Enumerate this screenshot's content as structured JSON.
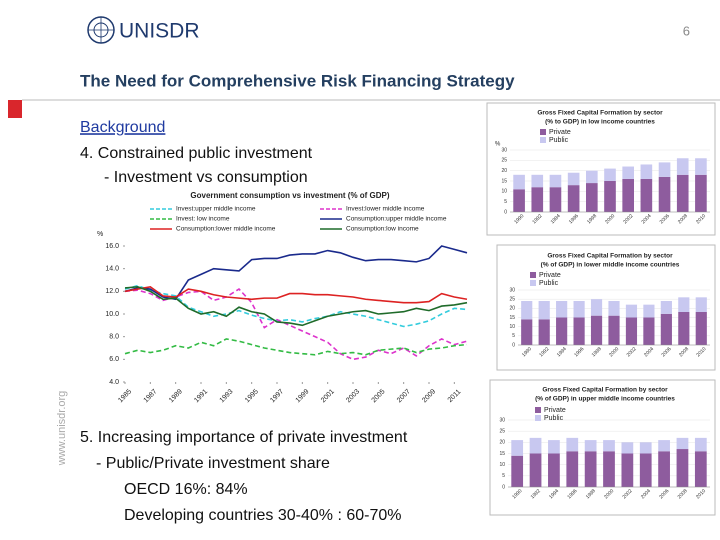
{
  "page_number": "6",
  "logo_text": "UNISDR",
  "title": "The Need for Comprehensive Risk Financing Strategy",
  "side_text": "www.unisdr.org",
  "bullets_top": [
    "Background",
    "4.  Constrained public investment",
    "- Investment vs consumption"
  ],
  "bullets_bottom": [
    "5. Increasing importance of private investment",
    "- Public/Private investment share",
    "OECD  16%: 84%",
    "Developing countries 30-40% : 60-70%"
  ],
  "chart_data": [
    {
      "type": "line",
      "title": "Government consumption vs investment (% of GDP)",
      "ylabel": "%",
      "x": [
        1985,
        1986,
        1987,
        1988,
        1989,
        1990,
        1991,
        1992,
        1993,
        1994,
        1995,
        1996,
        1997,
        1998,
        1999,
        2000,
        2001,
        2002,
        2003,
        2004,
        2005,
        2006,
        2007,
        2008,
        2009,
        2010,
        2011,
        2012
      ],
      "xlim": [
        1985,
        2012
      ],
      "xticks": [
        1985,
        1987,
        1989,
        1991,
        1993,
        1995,
        1997,
        1999,
        2001,
        2003,
        2005,
        2007,
        2009,
        2011
      ],
      "ylim": [
        4,
        16
      ],
      "yticks": [
        {
          "value": 4,
          "label": "4.0"
        },
        {
          "value": 6,
          "label": "6.0"
        },
        {
          "value": 8,
          "label": "8.0"
        },
        {
          "value": 10,
          "label": "10.0"
        },
        {
          "value": 12,
          "label": "12.0"
        },
        {
          "value": 14,
          "label": "14.0"
        },
        {
          "value": 16,
          "label": "16.0"
        }
      ],
      "series": [
        {
          "name": "Invest:upper middle income",
          "color": "#33ccdd",
          "dashed": true,
          "values": [
            12.2,
            12.5,
            12.1,
            11.8,
            11.6,
            10.6,
            10.2,
            9.8,
            10.0,
            10.3,
            9.9,
            9.6,
            9.4,
            9.5,
            9.3,
            9.6,
            9.8,
            10.2,
            10.0,
            9.8,
            9.5,
            9.2,
            8.9,
            9.1,
            9.4,
            10.0,
            10.5,
            10.4
          ]
        },
        {
          "name": "Invest:lower middle income",
          "color": "#dd33cc",
          "dashed": true,
          "values": [
            12.0,
            12.1,
            11.8,
            11.2,
            11.5,
            11.9,
            12.0,
            11.2,
            11.5,
            12.2,
            11.0,
            8.8,
            9.5,
            9.0,
            8.5,
            8.0,
            7.5,
            6.5,
            6.0,
            6.2,
            6.8,
            6.5,
            7.0,
            6.3,
            7.2,
            7.8,
            7.3,
            7.6
          ]
        },
        {
          "name": "Invest: low income",
          "color": "#33bb44",
          "dashed": true,
          "values": [
            6.5,
            6.8,
            6.6,
            6.8,
            7.2,
            7.0,
            7.5,
            7.2,
            7.8,
            7.6,
            7.3,
            7.0,
            6.8,
            6.6,
            6.5,
            6.4,
            6.7,
            6.5,
            6.6,
            6.4,
            6.8,
            6.9,
            7.0,
            6.6,
            6.9,
            7.0,
            7.2,
            7.3
          ]
        },
        {
          "name": "Consumption:upper middle income",
          "color": "#1a2a8c",
          "dashed": false,
          "values": [
            12.0,
            12.3,
            12.2,
            11.5,
            11.3,
            13.0,
            13.5,
            14.0,
            13.9,
            13.8,
            14.8,
            14.9,
            14.9,
            15.2,
            15.3,
            15.3,
            15.6,
            15.4,
            15.0,
            14.7,
            14.8,
            14.8,
            14.7,
            14.6,
            14.9,
            16.0,
            15.7,
            15.4
          ]
        },
        {
          "name": "Consumption:lower middle income",
          "color": "#dd2222",
          "dashed": false,
          "values": [
            12.0,
            12.2,
            12.4,
            11.6,
            11.5,
            12.2,
            12.0,
            11.7,
            11.5,
            11.4,
            11.3,
            11.4,
            11.4,
            11.8,
            11.8,
            11.7,
            11.7,
            11.6,
            11.5,
            11.3,
            11.2,
            11.1,
            11.0,
            11.0,
            11.1,
            11.8,
            11.5,
            11.3
          ]
        },
        {
          "name": "Consumption:low income",
          "color": "#1f6b2a",
          "dashed": false,
          "values": [
            12.3,
            12.4,
            12.0,
            11.3,
            11.4,
            10.5,
            10.0,
            10.2,
            9.8,
            10.6,
            10.2,
            10.0,
            9.3,
            9.2,
            9.0,
            9.4,
            9.8,
            10.0,
            10.2,
            10.3,
            10.0,
            10.1,
            10.2,
            10.5,
            10.3,
            10.7,
            10.8,
            11.0
          ]
        }
      ]
    },
    {
      "type": "stacked_bar",
      "title": [
        "Gross Fixed Capital Formation by sector",
        "(% to GDP) in low income countries"
      ],
      "ylabel": "%",
      "categories": [
        "1990",
        "1992",
        "1994",
        "1996",
        "1998",
        "2000",
        "2002",
        "2004",
        "2006",
        "2008",
        "2010"
      ],
      "ylim": [
        0,
        30
      ],
      "yticks": [
        0,
        5,
        10,
        15,
        20,
        25,
        30
      ],
      "series": [
        {
          "name": "Private",
          "color": "#8e5c9e",
          "values": [
            11,
            12,
            12,
            13,
            14,
            15,
            16,
            16,
            17,
            18,
            18
          ]
        },
        {
          "name": "Public",
          "color": "#c8c8f0",
          "values": [
            7,
            6,
            6,
            6,
            6,
            6,
            6,
            7,
            7,
            8,
            8
          ]
        }
      ]
    },
    {
      "type": "stacked_bar",
      "title": [
        "Gross Fixed Capital Formation by sector",
        "(% of GDP) in lower middle income countries"
      ],
      "categories": [
        "1990",
        "1992",
        "1994",
        "1996",
        "1998",
        "2000",
        "2002",
        "2004",
        "2006",
        "2008",
        "2010"
      ],
      "ylim": [
        0,
        30
      ],
      "yticks": [
        0,
        5,
        10,
        15,
        20,
        25,
        30
      ],
      "series": [
        {
          "name": "Private",
          "color": "#8e5c9e",
          "values": [
            14,
            14,
            15,
            15,
            16,
            16,
            15,
            15,
            17,
            18,
            18
          ]
        },
        {
          "name": "Public",
          "color": "#c8c8f0",
          "values": [
            10,
            10,
            9,
            9,
            9,
            8,
            7,
            7,
            7,
            8,
            8
          ]
        }
      ]
    },
    {
      "type": "stacked_bar",
      "title": [
        "Gross Fixed Capital Formation by sector",
        "(% of GDP) in upper middle income countries"
      ],
      "categories": [
        "1990",
        "1992",
        "1994",
        "1996",
        "1998",
        "2000",
        "2002",
        "2004",
        "2006",
        "2008",
        "2010"
      ],
      "ylim": [
        0,
        30
      ],
      "yticks": [
        0,
        5,
        10,
        15,
        20,
        25,
        30
      ],
      "series": [
        {
          "name": "Private",
          "color": "#8e5c9e",
          "values": [
            14,
            15,
            15,
            16,
            16,
            16,
            15,
            15,
            16,
            17,
            16
          ]
        },
        {
          "name": "Public",
          "color": "#c8c8f0",
          "values": [
            7,
            7,
            6,
            6,
            5,
            5,
            5,
            5,
            5,
            5,
            6
          ]
        }
      ]
    }
  ]
}
